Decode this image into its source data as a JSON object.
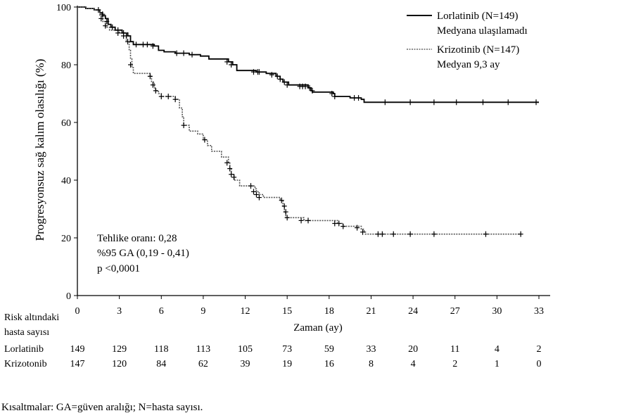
{
  "chart_data": {
    "type": "line",
    "title": "",
    "xlabel": "Zaman (ay)",
    "ylabel": "Progresyonsuz sağ kalım olasılığı (%)",
    "xlim": [
      0,
      33
    ],
    "ylim": [
      0,
      100
    ],
    "x_ticks": [
      "0",
      "3",
      "6",
      "9",
      "12",
      "15",
      "18",
      "21",
      "24",
      "27",
      "30",
      "33"
    ],
    "y_ticks": [
      "0",
      "20",
      "40",
      "60",
      "80",
      "100"
    ],
    "grid": false,
    "legend_position": "top-right",
    "series": [
      {
        "name": "Lorlatinib (N=149)",
        "note": "Medyana ulaşılamadı",
        "style": "solid",
        "color": "#000000",
        "points": [
          [
            0,
            100
          ],
          [
            0.6,
            99.5
          ],
          [
            1.2,
            99
          ],
          [
            1.6,
            98
          ],
          [
            1.8,
            97
          ],
          [
            2.0,
            96
          ],
          [
            2.2,
            94
          ],
          [
            2.4,
            93
          ],
          [
            2.7,
            92
          ],
          [
            3.2,
            91
          ],
          [
            3.6,
            90
          ],
          [
            3.8,
            88
          ],
          [
            4.0,
            87
          ],
          [
            5.5,
            86.5
          ],
          [
            5.8,
            85
          ],
          [
            6.2,
            84.5
          ],
          [
            7.0,
            84
          ],
          [
            8.0,
            83.5
          ],
          [
            8.8,
            83
          ],
          [
            9.4,
            82
          ],
          [
            10.8,
            81
          ],
          [
            11.1,
            80
          ],
          [
            11.4,
            78
          ],
          [
            12.8,
            77.5
          ],
          [
            13.5,
            77
          ],
          [
            14.2,
            76
          ],
          [
            14.5,
            75
          ],
          [
            14.7,
            74
          ],
          [
            15.1,
            73
          ],
          [
            16.5,
            72
          ],
          [
            16.7,
            71
          ],
          [
            16.8,
            70.5
          ],
          [
            18.3,
            70
          ],
          [
            18.4,
            69
          ],
          [
            19.5,
            68.5
          ],
          [
            20.3,
            68
          ],
          [
            20.5,
            67
          ],
          [
            33,
            67
          ]
        ],
        "censors": [
          [
            1.5,
            99
          ],
          [
            1.8,
            97.5
          ],
          [
            2.1,
            95
          ],
          [
            2.5,
            93
          ],
          [
            2.9,
            92
          ],
          [
            3.3,
            91
          ],
          [
            3.5,
            90
          ],
          [
            4.2,
            87
          ],
          [
            4.7,
            87
          ],
          [
            5.0,
            87
          ],
          [
            5.4,
            86.5
          ],
          [
            7.1,
            84
          ],
          [
            7.6,
            84
          ],
          [
            8.2,
            83.5
          ],
          [
            10.7,
            81
          ],
          [
            11.0,
            80
          ],
          [
            12.6,
            77.5
          ],
          [
            12.9,
            77.5
          ],
          [
            13.0,
            77.5
          ],
          [
            13.9,
            76.5
          ],
          [
            14.3,
            76
          ],
          [
            14.5,
            75
          ],
          [
            14.8,
            74
          ],
          [
            15.0,
            73
          ],
          [
            15.9,
            72.5
          ],
          [
            16.1,
            72.5
          ],
          [
            16.3,
            72.5
          ],
          [
            16.6,
            72
          ],
          [
            16.8,
            71
          ],
          [
            18.2,
            70
          ],
          [
            18.4,
            69
          ],
          [
            19.8,
            68.5
          ],
          [
            20.1,
            68.5
          ],
          [
            22.0,
            67
          ],
          [
            23.8,
            67
          ],
          [
            25.5,
            67
          ],
          [
            27.1,
            67
          ],
          [
            29.0,
            67
          ],
          [
            30.8,
            67
          ],
          [
            32.8,
            67
          ]
        ]
      },
      {
        "name": "Krizotinib (N=147)",
        "note": "Medyan 9,3 ay",
        "style": "dotted",
        "color": "#555555",
        "points": [
          [
            0,
            100
          ],
          [
            0.6,
            99.5
          ],
          [
            1.2,
            99
          ],
          [
            1.6,
            97
          ],
          [
            1.8,
            95
          ],
          [
            2.0,
            93
          ],
          [
            2.3,
            92
          ],
          [
            3.0,
            91
          ],
          [
            3.5,
            88
          ],
          [
            3.7,
            85
          ],
          [
            3.8,
            82
          ],
          [
            3.9,
            79
          ],
          [
            4.0,
            77
          ],
          [
            5.2,
            76
          ],
          [
            5.3,
            74
          ],
          [
            5.5,
            72
          ],
          [
            5.6,
            71
          ],
          [
            5.8,
            70
          ],
          [
            6.0,
            69
          ],
          [
            7.0,
            68
          ],
          [
            7.3,
            65
          ],
          [
            7.5,
            62
          ],
          [
            7.6,
            59
          ],
          [
            8.0,
            57
          ],
          [
            8.6,
            56
          ],
          [
            9.0,
            54
          ],
          [
            9.3,
            52
          ],
          [
            9.6,
            50
          ],
          [
            10.3,
            48
          ],
          [
            10.8,
            46
          ],
          [
            10.9,
            44
          ],
          [
            11.0,
            42
          ],
          [
            11.2,
            40
          ],
          [
            11.6,
            38
          ],
          [
            12.7,
            37
          ],
          [
            12.8,
            36
          ],
          [
            13.0,
            35
          ],
          [
            13.3,
            34
          ],
          [
            14.5,
            33
          ],
          [
            14.7,
            31
          ],
          [
            14.8,
            29
          ],
          [
            14.9,
            27
          ],
          [
            16.2,
            26
          ],
          [
            18.6,
            25
          ],
          [
            19.0,
            24
          ],
          [
            20.3,
            23
          ],
          [
            20.5,
            22
          ],
          [
            20.6,
            21.3
          ],
          [
            31.7,
            21.3
          ]
        ],
        "censors": [
          [
            1.7,
            96
          ],
          [
            2.0,
            93.5
          ],
          [
            2.9,
            91
          ],
          [
            3.3,
            90
          ],
          [
            3.6,
            88
          ],
          [
            3.8,
            80
          ],
          [
            5.2,
            76
          ],
          [
            5.4,
            73
          ],
          [
            5.6,
            71
          ],
          [
            6.0,
            69
          ],
          [
            6.5,
            69
          ],
          [
            7.0,
            68
          ],
          [
            7.6,
            59
          ],
          [
            9.1,
            54
          ],
          [
            10.7,
            46
          ],
          [
            10.9,
            44
          ],
          [
            11.0,
            42
          ],
          [
            11.2,
            41
          ],
          [
            12.4,
            38
          ],
          [
            12.6,
            36
          ],
          [
            12.8,
            35
          ],
          [
            13.0,
            34
          ],
          [
            14.6,
            33
          ],
          [
            14.8,
            31
          ],
          [
            14.9,
            29
          ],
          [
            15.0,
            27
          ],
          [
            16.0,
            26
          ],
          [
            16.5,
            26
          ],
          [
            18.4,
            25
          ],
          [
            18.7,
            25
          ],
          [
            19.0,
            24
          ],
          [
            20.0,
            23.5
          ],
          [
            20.4,
            22
          ],
          [
            21.5,
            21.3
          ],
          [
            21.8,
            21.3
          ],
          [
            22.6,
            21.3
          ],
          [
            23.8,
            21.3
          ],
          [
            25.5,
            21.3
          ],
          [
            29.2,
            21.3
          ],
          [
            31.7,
            21.3
          ]
        ]
      }
    ],
    "annotations": [
      "Tehlike oranı: 0,28",
      "%95 GA (0,19 - 0,41)",
      "p <0,0001"
    ],
    "risk_table": {
      "header_line1": "Risk altındaki",
      "header_line2": "hasta sayısı",
      "rows": [
        {
          "label": "Lorlatinib",
          "values": [
            "149",
            "129",
            "118",
            "113",
            "105",
            "73",
            "59",
            "33",
            "20",
            "11",
            "4",
            "2"
          ]
        },
        {
          "label": "Krizotonib",
          "values": [
            "147",
            "120",
            "84",
            "62",
            "39",
            "19",
            "16",
            "8",
            "4",
            "2",
            "1",
            "0"
          ]
        }
      ]
    }
  },
  "footnote": "Kısaltmalar: GA=güven aralığı; N=hasta sayısı."
}
